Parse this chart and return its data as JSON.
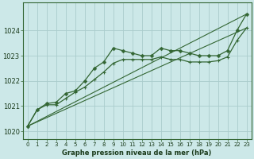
{
  "line1": [
    1020.2,
    1020.85,
    1021.1,
    1021.15,
    1021.5,
    1021.6,
    1022.0,
    1022.5,
    1022.75,
    1023.3,
    1023.2,
    1023.1,
    1023.0,
    1023.0,
    1023.3,
    1023.2,
    1023.2,
    1023.1,
    1023.0,
    1023.0,
    1023.0,
    1023.2,
    1024.0,
    1024.65
  ],
  "line2": [
    1020.2,
    1020.85,
    1021.05,
    1021.05,
    1021.3,
    1021.55,
    1021.75,
    1022.05,
    1022.35,
    1022.7,
    1022.85,
    1022.85,
    1022.85,
    1022.85,
    1022.95,
    1022.85,
    1022.85,
    1022.75,
    1022.75,
    1022.75,
    1022.8,
    1022.95,
    1023.6,
    1024.1
  ],
  "bg_color": "#cce8e8",
  "grid_color": "#aacccc",
  "line_color": "#336633",
  "xlabel": "Graphe pression niveau de la mer (hPa)",
  "ylim": [
    1019.7,
    1025.1
  ],
  "yticks": [
    1020,
    1021,
    1022,
    1023,
    1024
  ],
  "xticks": [
    0,
    1,
    2,
    3,
    4,
    5,
    6,
    7,
    8,
    9,
    10,
    11,
    12,
    13,
    14,
    15,
    16,
    17,
    18,
    19,
    20,
    21,
    22,
    23
  ],
  "xlabel_fontsize": 6.0,
  "ytick_fontsize": 6.0,
  "xtick_fontsize": 5.0
}
